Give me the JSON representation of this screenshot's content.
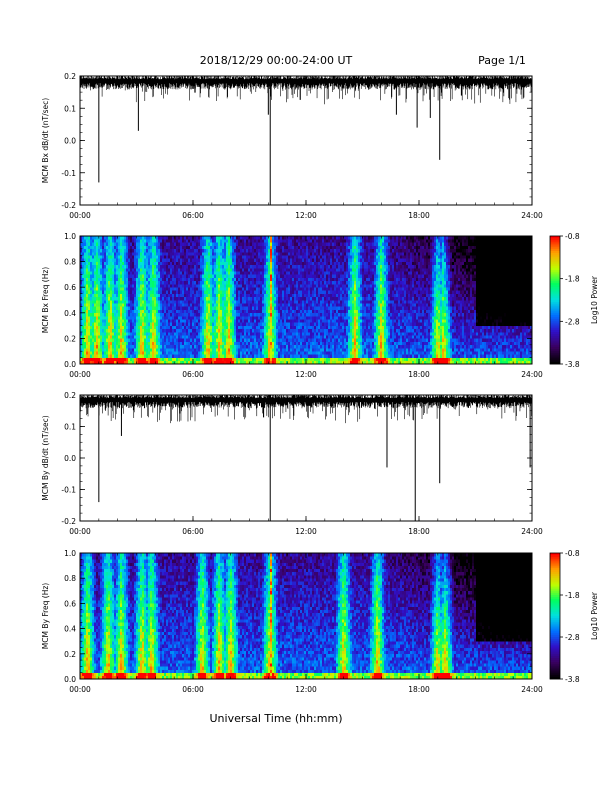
{
  "header": {
    "date_label": "2018/12/29   00:00-24:00 UT",
    "page_label": "Page 1/1"
  },
  "footer": {
    "xlabel": "Universal Time (hh:mm)"
  },
  "colors": {
    "trace": "#000000",
    "colormap": [
      "#000000",
      "#3a0060",
      "#3010c8",
      "#0070ff",
      "#00e0e0",
      "#00ff60",
      "#c0ff00",
      "#ffa000",
      "#ff0000"
    ]
  },
  "chart_data": [
    {
      "type": "line",
      "ylabel": "MCM Bx dB/dt (nT/sec)",
      "ylim": [
        -0.2,
        0.2
      ],
      "yticks": [
        "0.2",
        "0.1",
        "0.0",
        "-0.1",
        "-0.2"
      ],
      "xlim": [
        0,
        24
      ],
      "xticks": [
        "00:00",
        "06:00",
        "12:00",
        "18:00",
        "24:00"
      ],
      "baseline": 0.19,
      "spikes": [
        [
          1.0,
          -0.13
        ],
        [
          3.1,
          0.03
        ],
        [
          10.1,
          -0.2
        ],
        [
          10.0,
          0.08
        ],
        [
          17.9,
          0.04
        ],
        [
          19.1,
          -0.06
        ],
        [
          18.6,
          0.07
        ],
        [
          16.8,
          0.08
        ]
      ]
    },
    {
      "type": "heatmap",
      "ylabel": "MCM Bx Freq (Hz)",
      "ylim": [
        0.0,
        1.0
      ],
      "yticks": [
        "1.0",
        "0.8",
        "0.6",
        "0.4",
        "0.2",
        "0.0"
      ],
      "xlim": [
        0,
        24
      ],
      "xticks": [
        "00:00",
        "06:00",
        "12:00",
        "18:00",
        "24:00"
      ],
      "colorbar_label": "Log10 Power",
      "colorbar_ticks": [
        "-0.8",
        "-1.8",
        "-2.8",
        "-3.8"
      ],
      "vlim": [
        -3.8,
        -0.8
      ],
      "bright_times": [
        0.4,
        0.9,
        1.6,
        2.2,
        3.3,
        3.9,
        6.8,
        7.4,
        7.9,
        10.1,
        14.6,
        16.0,
        19.0,
        19.3
      ]
    },
    {
      "type": "line",
      "ylabel": "MCM By dB/dt (nT/sec)",
      "ylim": [
        -0.2,
        0.2
      ],
      "yticks": [
        "0.2",
        "0.1",
        "0.0",
        "-0.1",
        "-0.2"
      ],
      "xlim": [
        0,
        24
      ],
      "xticks": [
        "00:00",
        "06:00",
        "12:00",
        "18:00",
        "24:00"
      ],
      "baseline": 0.19,
      "spikes": [
        [
          1.0,
          -0.14
        ],
        [
          10.1,
          -0.2
        ],
        [
          16.3,
          -0.03
        ],
        [
          17.8,
          -0.2
        ],
        [
          19.1,
          -0.08
        ],
        [
          23.9,
          -0.03
        ],
        [
          2.2,
          0.07
        ]
      ]
    },
    {
      "type": "heatmap",
      "ylabel": "MCM By Freq (Hz)",
      "ylim": [
        0.0,
        1.0
      ],
      "yticks": [
        "1.0",
        "0.8",
        "0.6",
        "0.4",
        "0.2",
        "0.0"
      ],
      "xlim": [
        0,
        24
      ],
      "xticks": [
        "00:00",
        "06:00",
        "12:00",
        "18:00",
        "24:00"
      ],
      "colorbar_label": "Log10 Power",
      "colorbar_ticks": [
        "-0.8",
        "-1.8",
        "-2.8",
        "-3.8"
      ],
      "vlim": [
        -3.8,
        -0.8
      ],
      "bright_times": [
        0.4,
        1.5,
        2.2,
        3.3,
        3.8,
        6.5,
        7.4,
        8.0,
        10.1,
        14.0,
        15.8,
        19.0,
        19.4
      ]
    }
  ]
}
